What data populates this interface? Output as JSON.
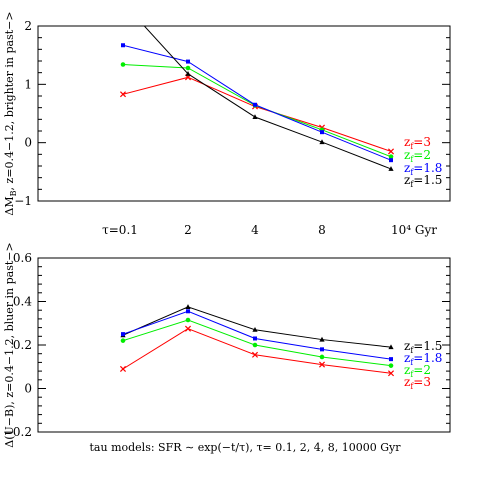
{
  "chart_data": [
    {
      "type": "line",
      "panel": "top",
      "ylabel": "ΔM_B, z=0.4−1.2, brighter in past−>",
      "ylabel_parts": [
        "ΔM",
        "B",
        ", z=0.4−1.2, brighter in past−>"
      ],
      "x_categories": [
        "τ=0.1",
        "2",
        "4",
        "8",
        "10⁴ Gyr"
      ],
      "x_tick_labels": [
        "τ=0.1",
        "2",
        "4",
        "8",
        "10⁴ Gyr"
      ],
      "ylim": [
        -1,
        2
      ],
      "yticks": [
        -1,
        0,
        1,
        2
      ],
      "ytick_labels": [
        "−1",
        "0",
        "1",
        "2"
      ],
      "series": [
        {
          "name": "zf=3",
          "legend_text": "z",
          "legend_sub": "f",
          "legend_value": "=3",
          "color": "#ff0000",
          "marker": "x",
          "values": [
            0.83,
            1.12,
            0.62,
            0.26,
            -0.15
          ]
        },
        {
          "name": "zf=2",
          "legend_text": "z",
          "legend_sub": "f",
          "legend_value": "=2",
          "color": "#00ee00",
          "marker": "o",
          "values": [
            1.34,
            1.28,
            0.64,
            0.22,
            -0.24
          ]
        },
        {
          "name": "zf=1.8",
          "legend_text": "z",
          "legend_sub": "f",
          "legend_value": "=1.8",
          "color": "#0000ff",
          "marker": "s",
          "values": [
            1.67,
            1.39,
            0.65,
            0.18,
            -0.3
          ]
        },
        {
          "name": "zf=1.5",
          "legend_text": "z",
          "legend_sub": "f",
          "legend_value": "=1.5",
          "color": "#000000",
          "marker": "^",
          "values": [
            2.4,
            1.18,
            0.44,
            0.01,
            -0.45
          ]
        }
      ]
    },
    {
      "type": "line",
      "panel": "bottom",
      "ylabel": "Δ(U−B), z=0.4−1.2, bluer in past−>",
      "xlabel": "tau models:  SFR ∼ exp(−t/τ),  τ= 0.1, 2, 4, 8, 10000 Gyr",
      "x_categories": [
        "τ=0.1",
        "2",
        "4",
        "8",
        "10⁴ Gyr"
      ],
      "ylim": [
        -0.2,
        0.6
      ],
      "yticks": [
        -0.2,
        0,
        0.2,
        0.4,
        0.6
      ],
      "ytick_labels": [
        "−0.2",
        "0",
        "0.2",
        "0.4",
        "0.6"
      ],
      "series": [
        {
          "name": "zf=1.5",
          "legend_text": "z",
          "legend_sub": "f",
          "legend_value": "=1.5",
          "color": "#000000",
          "marker": "^",
          "values": [
            0.245,
            0.375,
            0.27,
            0.225,
            0.19
          ]
        },
        {
          "name": "zf=1.8",
          "legend_text": "z",
          "legend_sub": "f",
          "legend_value": "=1.8",
          "color": "#0000ff",
          "marker": "s",
          "values": [
            0.25,
            0.355,
            0.23,
            0.18,
            0.135
          ]
        },
        {
          "name": "zf=2",
          "legend_text": "z",
          "legend_sub": "f",
          "legend_value": "=2",
          "color": "#00ee00",
          "marker": "o",
          "values": [
            0.22,
            0.315,
            0.2,
            0.145,
            0.105
          ]
        },
        {
          "name": "zf=3",
          "legend_text": "z",
          "legend_sub": "f",
          "legend_value": "=3",
          "color": "#ff0000",
          "marker": "x",
          "values": [
            0.09,
            0.275,
            0.155,
            0.11,
            0.07
          ]
        }
      ]
    }
  ]
}
